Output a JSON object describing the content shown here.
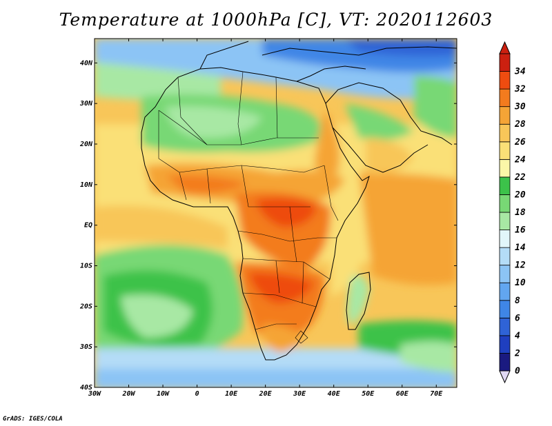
{
  "title": "Temperature at 1000hPa [C], VT: 2020112603",
  "footer": "GrADS: IGES/COLA",
  "map": {
    "lon_range": [
      -30,
      76
    ],
    "lat_range": [
      -40,
      46
    ],
    "lon_ticks": [
      {
        "value": -30,
        "label": "30W"
      },
      {
        "value": -20,
        "label": "20W"
      },
      {
        "value": -10,
        "label": "10W"
      },
      {
        "value": 0,
        "label": "0"
      },
      {
        "value": 10,
        "label": "10E"
      },
      {
        "value": 20,
        "label": "20E"
      },
      {
        "value": 30,
        "label": "30E"
      },
      {
        "value": 40,
        "label": "40E"
      },
      {
        "value": 50,
        "label": "50E"
      },
      {
        "value": 60,
        "label": "60E"
      },
      {
        "value": 70,
        "label": "70E"
      }
    ],
    "lat_ticks": [
      {
        "value": 40,
        "label": "40N"
      },
      {
        "value": 30,
        "label": "30N"
      },
      {
        "value": 20,
        "label": "20N"
      },
      {
        "value": 10,
        "label": "10N"
      },
      {
        "value": 0,
        "label": "EQ"
      },
      {
        "value": -10,
        "label": "10S"
      },
      {
        "value": -20,
        "label": "20S"
      },
      {
        "value": -30,
        "label": "30S"
      },
      {
        "value": -40,
        "label": "40S"
      }
    ]
  },
  "colorbar": {
    "levels": [
      0,
      2,
      4,
      6,
      8,
      10,
      12,
      14,
      16,
      18,
      20,
      22,
      24,
      26,
      28,
      30,
      32,
      34
    ],
    "labels": [
      "0",
      "2",
      "4",
      "6",
      "8",
      "10",
      "12",
      "14",
      "16",
      "18",
      "20",
      "22",
      "24",
      "26",
      "28",
      "30",
      "32",
      "34"
    ],
    "colors": [
      "#1a1a80",
      "#1f3fbf",
      "#2f63d6",
      "#3f86e6",
      "#62a6f0",
      "#8cc4f5",
      "#b4dcf7",
      "#e2f6fa",
      "#a8e8a4",
      "#78d875",
      "#3cc24a",
      "#fbf7a8",
      "#fae077",
      "#f8c659",
      "#f5a436",
      "#f37b1e",
      "#ee4c10",
      "#cc2010"
    ],
    "under_color": "#e0d8f4"
  }
}
